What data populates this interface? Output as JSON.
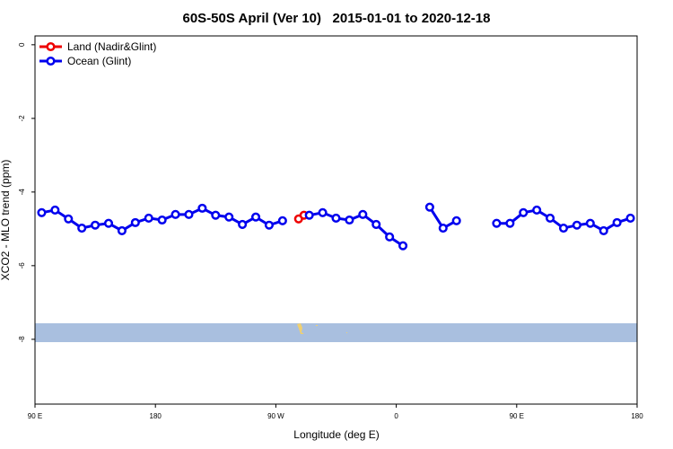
{
  "chart_data": {
    "type": "line",
    "title": "60S-50S April (Ver 10)   2015-01-01 to 2020-12-18",
    "x_label": "Longitude (deg E)",
    "y_label": "XCO2 - MLO trend (ppm)",
    "xlim": [
      90,
      540
    ],
    "ylim": [
      -9.76,
      0.24
    ],
    "xticks": [
      {
        "value": 90,
        "label": "90 E"
      },
      {
        "value": 180,
        "label": "180"
      },
      {
        "value": 270,
        "label": "90 W"
      },
      {
        "value": 360,
        "label": "0"
      },
      {
        "value": 450,
        "label": "90 E"
      },
      {
        "value": 540,
        "label": "180"
      }
    ],
    "yticks": [
      0,
      -2,
      -4,
      -6,
      -8
    ],
    "legend": "top-left",
    "series": [
      {
        "name": "Land (Nadir&Glint)",
        "color": "#ee0000",
        "x": [
          287,
          291
        ],
        "values": [
          -4.73,
          -4.63
        ]
      },
      {
        "name": "Ocean (Glint)",
        "color": "#0000ee",
        "x": [
          95,
          105,
          115,
          125,
          135,
          145,
          155,
          165,
          175,
          185,
          195,
          205,
          215,
          225,
          235,
          245,
          255,
          265,
          275,
          285,
          295,
          305,
          315,
          325,
          335,
          345,
          355,
          365,
          375,
          385,
          395,
          405,
          415,
          435,
          445,
          455,
          465,
          475,
          485,
          495,
          505,
          515,
          525,
          535
        ],
        "values": [
          -4.56,
          -4.49,
          -4.73,
          -4.98,
          -4.9,
          -4.85,
          -5.05,
          -4.83,
          -4.71,
          -4.76,
          -4.61,
          -4.61,
          -4.44,
          -4.63,
          -4.68,
          -4.88,
          -4.68,
          -4.9,
          -4.78,
          null,
          -4.63,
          -4.56,
          -4.71,
          -4.76,
          -4.61,
          -4.88,
          -5.22,
          -5.46,
          null,
          -4.41,
          -4.98,
          -4.78,
          null,
          -4.85,
          -4.85,
          -4.56,
          -4.49,
          -4.71,
          -4.98,
          -4.9,
          -4.85,
          -5.05,
          -4.83,
          -4.71
        ]
      }
    ]
  }
}
